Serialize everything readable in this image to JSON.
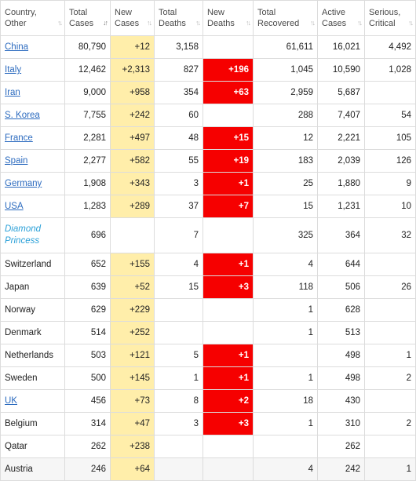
{
  "columns": [
    {
      "key": "country",
      "label": "Country,\nOther"
    },
    {
      "key": "total_cases",
      "label": "Total\nCases",
      "sort_active": true
    },
    {
      "key": "new_cases",
      "label": "New\nCases"
    },
    {
      "key": "total_deaths",
      "label": "Total\nDeaths"
    },
    {
      "key": "new_deaths",
      "label": "New\nDeaths"
    },
    {
      "key": "total_recovered",
      "label": "Total\nRecovered"
    },
    {
      "key": "active_cases",
      "label": "Active\nCases"
    },
    {
      "key": "serious_critical",
      "label": "Serious,\nCritical"
    }
  ],
  "colors": {
    "new_cases_highlight": "#ffeeaa",
    "new_deaths_highlight": "#f60000",
    "link": "#2c6bbf",
    "special_link": "#2aa0d8"
  },
  "rows": [
    {
      "country": "China",
      "link": true,
      "total_cases": "80,790",
      "new_cases": "+12",
      "total_deaths": "3,158",
      "new_deaths": "",
      "total_recovered": "61,611",
      "active_cases": "16,021",
      "serious_critical": "4,492"
    },
    {
      "country": "Italy",
      "link": true,
      "total_cases": "12,462",
      "new_cases": "+2,313",
      "total_deaths": "827",
      "new_deaths": "+196",
      "total_recovered": "1,045",
      "active_cases": "10,590",
      "serious_critical": "1,028"
    },
    {
      "country": "Iran",
      "link": true,
      "total_cases": "9,000",
      "new_cases": "+958",
      "total_deaths": "354",
      "new_deaths": "+63",
      "total_recovered": "2,959",
      "active_cases": "5,687",
      "serious_critical": ""
    },
    {
      "country": "S. Korea",
      "link": true,
      "total_cases": "7,755",
      "new_cases": "+242",
      "total_deaths": "60",
      "new_deaths": "",
      "total_recovered": "288",
      "active_cases": "7,407",
      "serious_critical": "54"
    },
    {
      "country": "France",
      "link": true,
      "total_cases": "2,281",
      "new_cases": "+497",
      "total_deaths": "48",
      "new_deaths": "+15",
      "total_recovered": "12",
      "active_cases": "2,221",
      "serious_critical": "105"
    },
    {
      "country": "Spain",
      "link": true,
      "total_cases": "2,277",
      "new_cases": "+582",
      "total_deaths": "55",
      "new_deaths": "+19",
      "total_recovered": "183",
      "active_cases": "2,039",
      "serious_critical": "126"
    },
    {
      "country": "Germany",
      "link": true,
      "total_cases": "1,908",
      "new_cases": "+343",
      "total_deaths": "3",
      "new_deaths": "+1",
      "total_recovered": "25",
      "active_cases": "1,880",
      "serious_critical": "9"
    },
    {
      "country": "USA",
      "link": true,
      "total_cases": "1,283",
      "new_cases": "+289",
      "total_deaths": "37",
      "new_deaths": "+7",
      "total_recovered": "15",
      "active_cases": "1,231",
      "serious_critical": "10"
    },
    {
      "country": "Diamond Princess",
      "special": true,
      "total_cases": "696",
      "new_cases": "",
      "total_deaths": "7",
      "new_deaths": "",
      "total_recovered": "325",
      "active_cases": "364",
      "serious_critical": "32"
    },
    {
      "country": "Switzerland",
      "total_cases": "652",
      "new_cases": "+155",
      "total_deaths": "4",
      "new_deaths": "+1",
      "total_recovered": "4",
      "active_cases": "644",
      "serious_critical": ""
    },
    {
      "country": "Japan",
      "total_cases": "639",
      "new_cases": "+52",
      "total_deaths": "15",
      "new_deaths": "+3",
      "total_recovered": "118",
      "active_cases": "506",
      "serious_critical": "26"
    },
    {
      "country": "Norway",
      "total_cases": "629",
      "new_cases": "+229",
      "total_deaths": "",
      "new_deaths": "",
      "total_recovered": "1",
      "active_cases": "628",
      "serious_critical": ""
    },
    {
      "country": "Denmark",
      "total_cases": "514",
      "new_cases": "+252",
      "total_deaths": "",
      "new_deaths": "",
      "total_recovered": "1",
      "active_cases": "513",
      "serious_critical": ""
    },
    {
      "country": "Netherlands",
      "total_cases": "503",
      "new_cases": "+121",
      "total_deaths": "5",
      "new_deaths": "+1",
      "total_recovered": "",
      "active_cases": "498",
      "serious_critical": "1"
    },
    {
      "country": "Sweden",
      "total_cases": "500",
      "new_cases": "+145",
      "total_deaths": "1",
      "new_deaths": "+1",
      "total_recovered": "1",
      "active_cases": "498",
      "serious_critical": "2"
    },
    {
      "country": "UK",
      "link": true,
      "total_cases": "456",
      "new_cases": "+73",
      "total_deaths": "8",
      "new_deaths": "+2",
      "total_recovered": "18",
      "active_cases": "430",
      "serious_critical": ""
    },
    {
      "country": "Belgium",
      "total_cases": "314",
      "new_cases": "+47",
      "total_deaths": "3",
      "new_deaths": "+3",
      "total_recovered": "1",
      "active_cases": "310",
      "serious_critical": "2"
    },
    {
      "country": "Qatar",
      "total_cases": "262",
      "new_cases": "+238",
      "total_deaths": "",
      "new_deaths": "",
      "total_recovered": "",
      "active_cases": "262",
      "serious_critical": ""
    },
    {
      "country": "Austria",
      "total_cases": "246",
      "new_cases": "+64",
      "total_deaths": "",
      "new_deaths": "",
      "total_recovered": "4",
      "active_cases": "242",
      "serious_critical": "1"
    }
  ]
}
